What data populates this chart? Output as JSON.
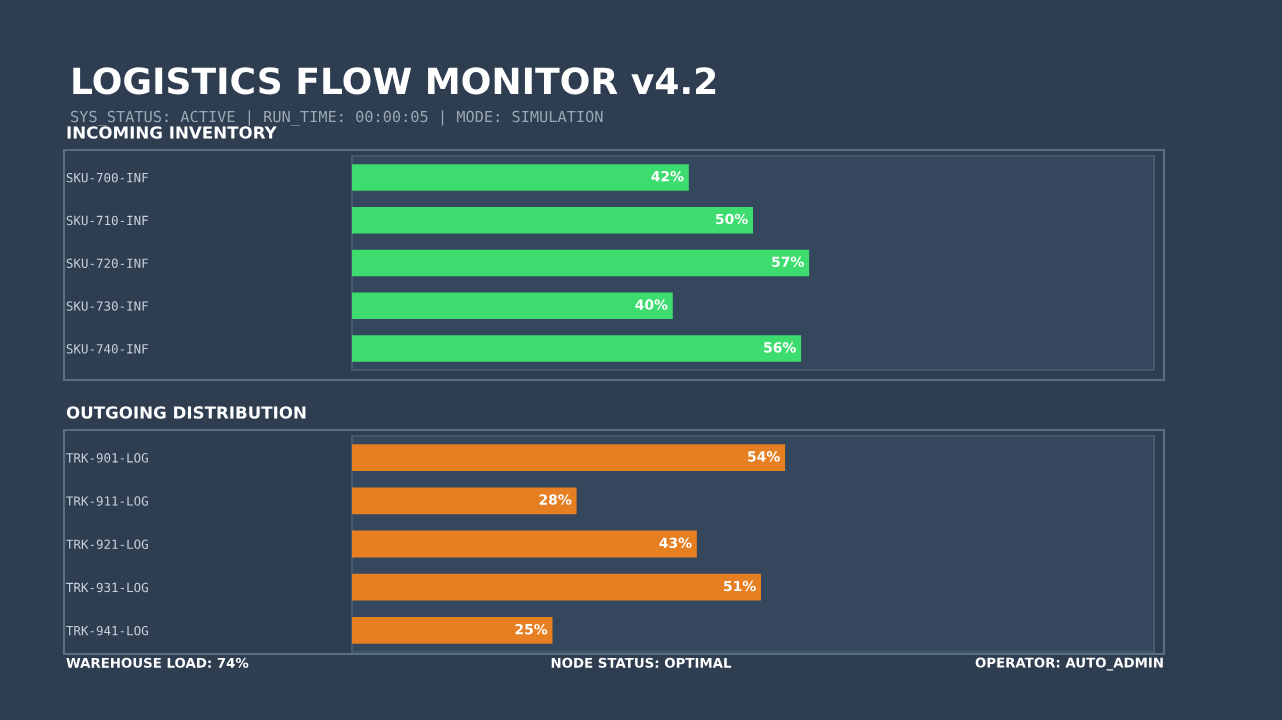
{
  "chart_data": [
    {
      "type": "bar",
      "orientation": "horizontal",
      "title": "INCOMING INVENTORY",
      "annotations": [
        "LOGISTICS FLOW MONITOR v4.2",
        "SYS_STATUS: ACTIVE | RUN_TIME: 00:00:05 | MODE: SIMULATION"
      ],
      "categories": [
        "SKU-700-INF",
        "SKU-710-INF",
        "SKU-720-INF",
        "SKU-730-INF",
        "SKU-740-INF"
      ],
      "values": [
        42,
        50,
        57,
        40,
        56
      ],
      "color": "#3ddc6e",
      "value_labels": [
        "42%",
        "50%",
        "57%",
        "40%",
        "56%"
      ],
      "xlim": [
        0,
        100
      ],
      "tick_labels": "y",
      "grid": false,
      "legend": false
    },
    {
      "type": "bar",
      "orientation": "horizontal",
      "title": "OUTGOING DISTRIBUTION",
      "annotations": [
        "WAREHOUSE LOAD: 74%",
        "NODE STATUS: OPTIMAL",
        "OPERATOR: AUTO_ADMIN"
      ],
      "categories": [
        "TRK-901-LOG",
        "TRK-911-LOG",
        "TRK-921-LOG",
        "TRK-931-LOG",
        "TRK-941-LOG"
      ],
      "values": [
        54,
        28,
        43,
        51,
        25
      ],
      "color": "#e67e22",
      "value_labels": [
        "54%",
        "28%",
        "43%",
        "51%",
        "25%"
      ],
      "xlim": [
        0,
        100
      ],
      "tick_labels": "y",
      "grid": false,
      "legend": false
    }
  ]
}
